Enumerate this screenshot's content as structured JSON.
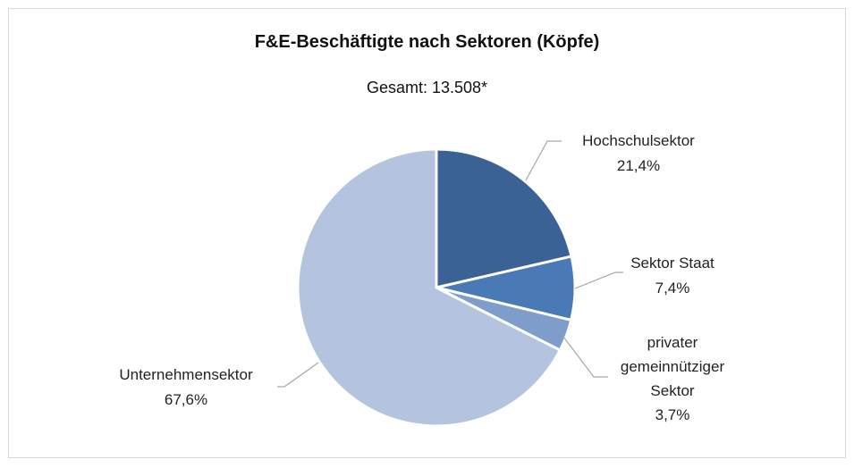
{
  "chart_data": {
    "type": "pie",
    "title": "F&E-Beschäftigte nach Sektoren (Köpfe)",
    "subtitle": "Gesamt: 13.508*",
    "categories": [
      "Hochschulsektor",
      "Sektor Staat",
      "privater gemeinnütziger Sektor",
      "Unternehmensektor"
    ],
    "values": [
      21.4,
      7.4,
      3.7,
      67.6
    ],
    "value_labels": [
      "21,4%",
      "7,4%",
      "3,7%",
      "67,6%"
    ],
    "colors": [
      "#3b6294",
      "#4a7ab6",
      "#7e9dcb",
      "#b5c4de"
    ]
  }
}
